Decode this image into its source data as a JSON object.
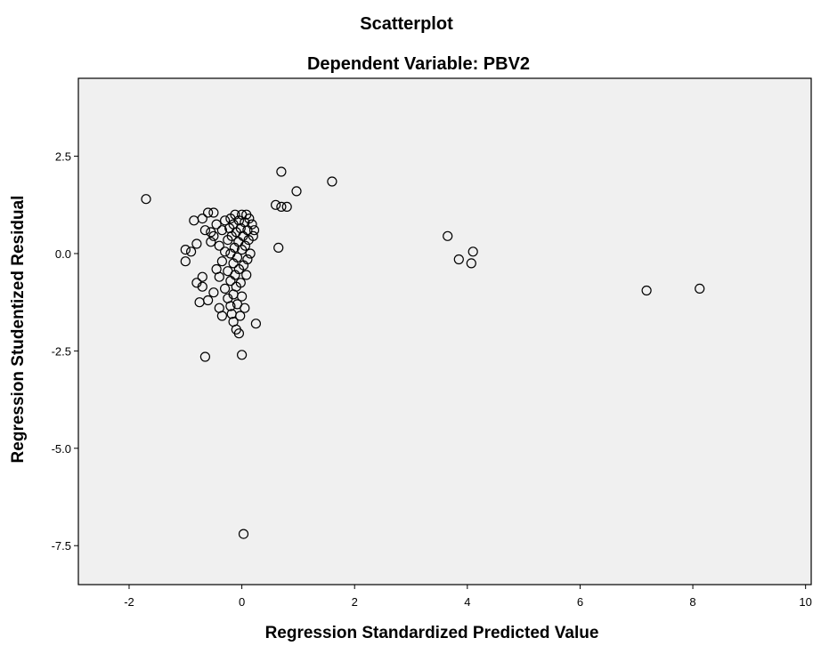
{
  "chart_data": {
    "type": "scatter",
    "title": "Scatterplot",
    "subtitle": "Dependent Variable: PBV2",
    "xlabel": "Regression Standardized Predicted Value",
    "ylabel": "Regression Studentized Residual",
    "xlim": [
      -2.9,
      10.1
    ],
    "ylim": [
      -8.5,
      4.5
    ],
    "x_ticks": [
      {
        "value": -2,
        "label": "-2"
      },
      {
        "value": 0,
        "label": "0"
      },
      {
        "value": 2,
        "label": "2"
      },
      {
        "value": 4,
        "label": "4"
      },
      {
        "value": 6,
        "label": "6"
      },
      {
        "value": 8,
        "label": "8"
      },
      {
        "value": 10,
        "label": "10"
      }
    ],
    "y_ticks": [
      {
        "value": 2.5,
        "label": "2.5"
      },
      {
        "value": 0.0,
        "label": "0.0"
      },
      {
        "value": -2.5,
        "label": "-2.5"
      },
      {
        "value": -5.0,
        "label": "-5.0"
      },
      {
        "value": -7.5,
        "label": "-7.5"
      }
    ],
    "grid": false,
    "colors": {
      "plot_background": "#f0f0f0",
      "marker_stroke": "#000000"
    },
    "marker": "open-circle",
    "points": [
      {
        "x": -1.7,
        "y": 1.4
      },
      {
        "x": -1.0,
        "y": 0.1
      },
      {
        "x": -1.0,
        "y": -0.2
      },
      {
        "x": -0.9,
        "y": 0.05
      },
      {
        "x": -0.85,
        "y": 0.85
      },
      {
        "x": -0.8,
        "y": -0.75
      },
      {
        "x": -0.8,
        "y": 0.25
      },
      {
        "x": -0.75,
        "y": -1.25
      },
      {
        "x": -0.7,
        "y": -0.85
      },
      {
        "x": -0.7,
        "y": -0.6
      },
      {
        "x": -0.7,
        "y": 0.9
      },
      {
        "x": -0.65,
        "y": 0.6
      },
      {
        "x": -0.65,
        "y": -2.65
      },
      {
        "x": -0.6,
        "y": 1.05
      },
      {
        "x": -0.6,
        "y": -1.2
      },
      {
        "x": -0.55,
        "y": 0.3
      },
      {
        "x": -0.55,
        "y": 0.55
      },
      {
        "x": -0.5,
        "y": 1.05
      },
      {
        "x": -0.5,
        "y": -1.0
      },
      {
        "x": -0.5,
        "y": 0.45
      },
      {
        "x": -0.45,
        "y": -0.4
      },
      {
        "x": -0.45,
        "y": 0.75
      },
      {
        "x": -0.4,
        "y": -0.6
      },
      {
        "x": -0.4,
        "y": 0.2
      },
      {
        "x": -0.4,
        "y": -1.4
      },
      {
        "x": -0.35,
        "y": -1.6
      },
      {
        "x": -0.35,
        "y": 0.6
      },
      {
        "x": -0.35,
        "y": -0.2
      },
      {
        "x": -0.3,
        "y": 0.05
      },
      {
        "x": -0.3,
        "y": -0.9
      },
      {
        "x": -0.3,
        "y": 0.85
      },
      {
        "x": -0.25,
        "y": -1.15
      },
      {
        "x": -0.25,
        "y": 0.35
      },
      {
        "x": -0.25,
        "y": -0.45
      },
      {
        "x": -0.22,
        "y": 0.65
      },
      {
        "x": -0.2,
        "y": -1.35
      },
      {
        "x": -0.2,
        "y": -0.7
      },
      {
        "x": -0.2,
        "y": 0.0
      },
      {
        "x": -0.2,
        "y": 0.9
      },
      {
        "x": -0.18,
        "y": -1.55
      },
      {
        "x": -0.18,
        "y": 0.45
      },
      {
        "x": -0.15,
        "y": -0.25
      },
      {
        "x": -0.15,
        "y": -1.05
      },
      {
        "x": -0.15,
        "y": 0.75
      },
      {
        "x": -0.15,
        "y": -1.75
      },
      {
        "x": -0.13,
        "y": 0.15
      },
      {
        "x": -0.12,
        "y": -0.55
      },
      {
        "x": -0.12,
        "y": 1.0
      },
      {
        "x": -0.1,
        "y": -1.95
      },
      {
        "x": -0.1,
        "y": -0.85
      },
      {
        "x": -0.1,
        "y": 0.55
      },
      {
        "x": -0.08,
        "y": -0.1
      },
      {
        "x": -0.08,
        "y": -1.3
      },
      {
        "x": -0.06,
        "y": 0.3
      },
      {
        "x": -0.05,
        "y": -2.05
      },
      {
        "x": -0.05,
        "y": 0.85
      },
      {
        "x": -0.05,
        "y": -0.4
      },
      {
        "x": -0.03,
        "y": -1.6
      },
      {
        "x": -0.02,
        "y": 0.65
      },
      {
        "x": -0.02,
        "y": -0.75
      },
      {
        "x": 0.0,
        "y": 0.1
      },
      {
        "x": 0.0,
        "y": 1.0
      },
      {
        "x": 0.0,
        "y": -1.1
      },
      {
        "x": 0.0,
        "y": -2.6
      },
      {
        "x": 0.02,
        "y": 0.45
      },
      {
        "x": 0.03,
        "y": -0.3
      },
      {
        "x": 0.03,
        "y": -7.2
      },
      {
        "x": 0.05,
        "y": 0.8
      },
      {
        "x": 0.05,
        "y": -1.4
      },
      {
        "x": 0.06,
        "y": 0.2
      },
      {
        "x": 0.08,
        "y": -0.55
      },
      {
        "x": 0.08,
        "y": 1.0
      },
      {
        "x": 0.1,
        "y": 0.6
      },
      {
        "x": 0.1,
        "y": -0.15
      },
      {
        "x": 0.12,
        "y": 0.35
      },
      {
        "x": 0.13,
        "y": 0.9
      },
      {
        "x": 0.15,
        "y": 0.0
      },
      {
        "x": 0.18,
        "y": 0.75
      },
      {
        "x": 0.2,
        "y": 0.45
      },
      {
        "x": 0.22,
        "y": 0.6
      },
      {
        "x": 0.25,
        "y": -1.8
      },
      {
        "x": 0.6,
        "y": 1.25
      },
      {
        "x": 0.65,
        "y": 0.15
      },
      {
        "x": 0.7,
        "y": 1.2
      },
      {
        "x": 0.7,
        "y": 2.1
      },
      {
        "x": 0.8,
        "y": 1.2
      },
      {
        "x": 0.97,
        "y": 1.6
      },
      {
        "x": 1.6,
        "y": 1.85
      },
      {
        "x": 3.65,
        "y": 0.45
      },
      {
        "x": 3.85,
        "y": -0.15
      },
      {
        "x": 4.07,
        "y": -0.25
      },
      {
        "x": 4.1,
        "y": 0.05
      },
      {
        "x": 7.18,
        "y": -0.95
      },
      {
        "x": 8.12,
        "y": -0.9
      }
    ]
  }
}
